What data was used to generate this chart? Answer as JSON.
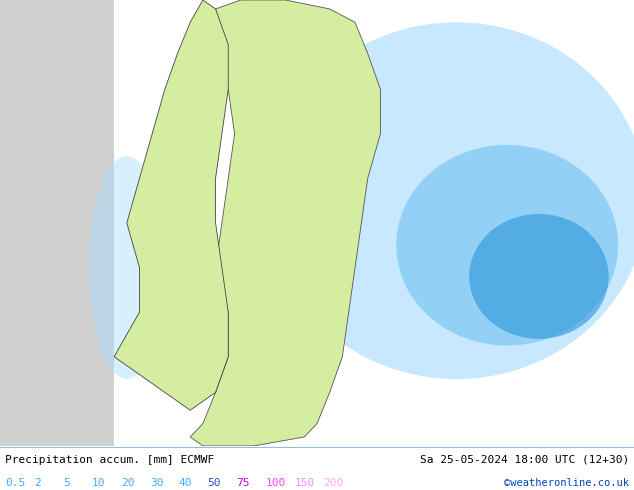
{
  "title_left": "Precipitation accum. [mm] ECMWF",
  "title_right": "Sa 25-05-2024 18:00 UTC (12+30)",
  "credit": "©weatheronline.co.uk",
  "colorbar_labels": [
    "0.5",
    "2",
    "5",
    "10",
    "20",
    "30",
    "40",
    "50",
    "75",
    "100",
    "150",
    "200"
  ],
  "label_colors": [
    "#44aaff",
    "#44aaff",
    "#44aaff",
    "#44aaff",
    "#44aaff",
    "#44aaff",
    "#44aaff",
    "#2255bb",
    "#cc00cc",
    "#ff44ff",
    "#ff88ff",
    "#ffaaff"
  ],
  "bottom_bg": "#cce4f7",
  "text_color": "#000000",
  "credit_color": "#0044bb",
  "fig_width": 6.34,
  "fig_height": 4.9,
  "sea_color": "#ffffff",
  "land_yellow_green": "#d4eda0",
  "land_light_blue": "#b8dff5",
  "precip_lightest": "#d8f0ff",
  "precip_light": "#aaddff",
  "precip_mid": "#77c4f0",
  "precip_dark": "#3399dd",
  "precip_deeper": "#1177bb",
  "gray_nodata": "#c8c8c8",
  "border_color": "#444444"
}
